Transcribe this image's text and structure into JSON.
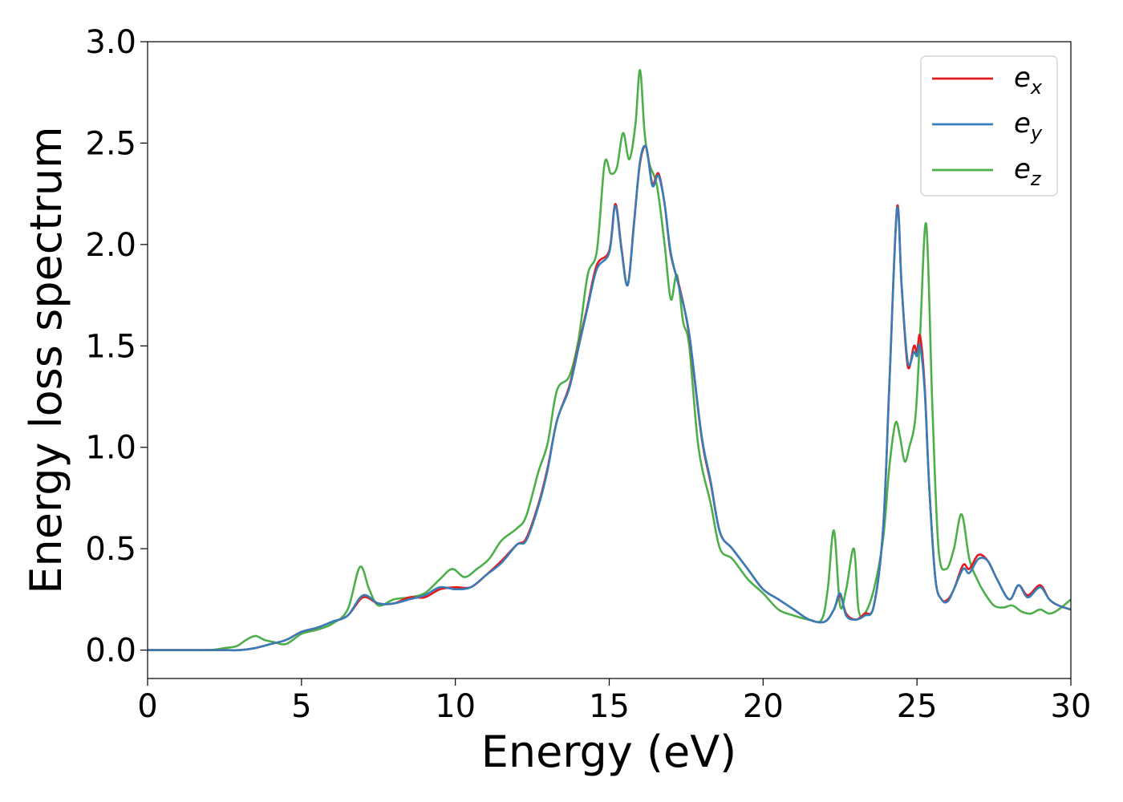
{
  "chart_data": {
    "type": "line",
    "title": "",
    "xlabel": "Energy (eV)",
    "ylabel": "Energy loss spectrum",
    "xlim": [
      0,
      30
    ],
    "ylim": [
      -0.14,
      3.0
    ],
    "xticks": [
      0,
      5,
      10,
      15,
      20,
      25,
      30
    ],
    "xtick_labels": [
      "0",
      "5",
      "10",
      "15",
      "20",
      "25",
      "30"
    ],
    "yticks": [
      0.0,
      0.5,
      1.0,
      1.5,
      2.0,
      2.5,
      3.0
    ],
    "ytick_labels": [
      "0.0",
      "0.5",
      "1.0",
      "1.5",
      "2.0",
      "2.5",
      "3.0"
    ],
    "grid": false,
    "legend_position": "top-right",
    "series": [
      {
        "name": "e_x",
        "legend_base": "e",
        "legend_sub": "x",
        "color": "#e41a1c",
        "x": [
          0,
          1,
          2,
          2.5,
          3,
          3.5,
          4,
          4.5,
          5,
          5.5,
          6,
          6.5,
          7,
          7.5,
          8,
          8.5,
          9,
          9.5,
          10,
          10.5,
          11,
          11.5,
          12,
          12.3,
          12.7,
          13,
          13.3,
          13.7,
          14,
          14.3,
          14.6,
          15,
          15.2,
          15.4,
          15.6,
          15.8,
          16,
          16.2,
          16.4,
          16.6,
          16.8,
          17,
          17.3,
          17.6,
          18,
          18.3,
          18.6,
          19,
          19.5,
          20,
          20.5,
          21,
          21.5,
          22,
          22.3,
          22.5,
          22.7,
          23,
          23.3,
          23.6,
          23.9,
          24.1,
          24.35,
          24.5,
          24.7,
          24.9,
          25,
          25.1,
          25.25,
          25.4,
          25.6,
          25.8,
          26,
          26.2,
          26.5,
          26.7,
          27,
          27.3,
          27.6,
          28,
          28.3,
          28.6,
          29,
          29.3,
          29.6,
          30
        ],
        "y": [
          0,
          0,
          0,
          0,
          0,
          0.01,
          0.03,
          0.05,
          0.09,
          0.11,
          0.14,
          0.17,
          0.26,
          0.23,
          0.23,
          0.26,
          0.26,
          0.3,
          0.31,
          0.31,
          0.37,
          0.44,
          0.52,
          0.55,
          0.72,
          0.9,
          1.13,
          1.3,
          1.5,
          1.7,
          1.9,
          1.97,
          2.2,
          1.98,
          1.8,
          2.1,
          2.4,
          2.48,
          2.3,
          2.35,
          2.2,
          1.95,
          1.78,
          1.55,
          1.05,
          0.82,
          0.58,
          0.5,
          0.4,
          0.3,
          0.25,
          0.2,
          0.15,
          0.14,
          0.2,
          0.27,
          0.18,
          0.15,
          0.18,
          0.22,
          0.6,
          1.3,
          2.18,
          1.8,
          1.4,
          1.5,
          1.47,
          1.55,
          1.3,
          0.8,
          0.35,
          0.25,
          0.25,
          0.3,
          0.42,
          0.4,
          0.47,
          0.44,
          0.35,
          0.25,
          0.32,
          0.27,
          0.32,
          0.25,
          0.22,
          0.2
        ]
      },
      {
        "name": "e_y",
        "legend_base": "e",
        "legend_sub": "y",
        "color": "#377eb8",
        "x": [
          0,
          1,
          2,
          2.5,
          3,
          3.5,
          4,
          4.5,
          5,
          5.5,
          6,
          6.5,
          7,
          7.5,
          8,
          8.5,
          9,
          9.5,
          10,
          10.5,
          11,
          11.5,
          12,
          12.3,
          12.7,
          13,
          13.3,
          13.7,
          14,
          14.3,
          14.6,
          15,
          15.2,
          15.4,
          15.6,
          15.8,
          16,
          16.2,
          16.4,
          16.6,
          16.8,
          17,
          17.3,
          17.6,
          18,
          18.3,
          18.6,
          19,
          19.5,
          20,
          20.5,
          21,
          21.5,
          22,
          22.3,
          22.5,
          22.7,
          23,
          23.3,
          23.6,
          23.9,
          24.1,
          24.35,
          24.5,
          24.7,
          24.9,
          25,
          25.1,
          25.25,
          25.4,
          25.6,
          25.8,
          26,
          26.2,
          26.5,
          26.7,
          27,
          27.3,
          27.6,
          28,
          28.3,
          28.6,
          29,
          29.3,
          29.6,
          30
        ],
        "y": [
          0,
          0,
          0,
          0,
          0,
          0.01,
          0.03,
          0.05,
          0.09,
          0.11,
          0.14,
          0.17,
          0.27,
          0.23,
          0.23,
          0.25,
          0.27,
          0.31,
          0.3,
          0.31,
          0.37,
          0.43,
          0.52,
          0.54,
          0.71,
          0.89,
          1.13,
          1.29,
          1.49,
          1.69,
          1.88,
          1.96,
          2.19,
          1.97,
          1.8,
          2.09,
          2.41,
          2.48,
          2.29,
          2.34,
          2.2,
          1.96,
          1.77,
          1.56,
          1.06,
          0.83,
          0.58,
          0.5,
          0.4,
          0.3,
          0.25,
          0.2,
          0.15,
          0.14,
          0.2,
          0.28,
          0.17,
          0.15,
          0.17,
          0.22,
          0.6,
          1.3,
          2.17,
          1.8,
          1.42,
          1.47,
          1.45,
          1.5,
          1.28,
          0.8,
          0.35,
          0.25,
          0.24,
          0.3,
          0.4,
          0.38,
          0.45,
          0.44,
          0.35,
          0.25,
          0.32,
          0.26,
          0.31,
          0.25,
          0.22,
          0.2
        ]
      },
      {
        "name": "e_z",
        "legend_base": "e",
        "legend_sub": "z",
        "color": "#4daf4a",
        "x": [
          0,
          1,
          2,
          2.5,
          2.9,
          3.2,
          3.5,
          3.8,
          4.1,
          4.5,
          5,
          5.5,
          6,
          6.5,
          6.9,
          7.2,
          7.5,
          8,
          8.5,
          9,
          9.5,
          9.9,
          10.3,
          10.7,
          11.1,
          11.5,
          12,
          12.3,
          12.7,
          13,
          13.3,
          13.7,
          14,
          14.3,
          14.6,
          14.85,
          15.05,
          15.25,
          15.45,
          15.65,
          15.85,
          16.0,
          16.15,
          16.3,
          16.55,
          16.8,
          17.0,
          17.2,
          17.4,
          17.6,
          17.9,
          18.3,
          18.6,
          19,
          19.5,
          20,
          20.5,
          21,
          21.5,
          21.9,
          22.1,
          22.3,
          22.5,
          22.7,
          22.95,
          23.1,
          23.3,
          23.6,
          23.9,
          24.1,
          24.3,
          24.45,
          24.6,
          24.75,
          24.95,
          25.1,
          25.3,
          25.5,
          25.7,
          25.95,
          26.2,
          26.45,
          26.7,
          26.95,
          27.2,
          27.5,
          27.8,
          28.1,
          28.4,
          28.7,
          29,
          29.3,
          29.6,
          30
        ],
        "y": [
          0,
          0,
          0,
          0.01,
          0.02,
          0.05,
          0.07,
          0.05,
          0.04,
          0.03,
          0.08,
          0.1,
          0.13,
          0.2,
          0.41,
          0.3,
          0.22,
          0.25,
          0.26,
          0.28,
          0.35,
          0.4,
          0.36,
          0.4,
          0.45,
          0.54,
          0.6,
          0.66,
          0.88,
          1.02,
          1.28,
          1.35,
          1.53,
          1.85,
          1.97,
          2.4,
          2.35,
          2.38,
          2.55,
          2.42,
          2.59,
          2.86,
          2.55,
          2.4,
          2.29,
          2.0,
          1.73,
          1.85,
          1.62,
          1.5,
          1.0,
          0.72,
          0.5,
          0.45,
          0.35,
          0.28,
          0.2,
          0.17,
          0.15,
          0.15,
          0.3,
          0.59,
          0.22,
          0.3,
          0.5,
          0.2,
          0.18,
          0.3,
          0.55,
          0.9,
          1.12,
          1.05,
          0.93,
          1.0,
          1.15,
          1.55,
          2.1,
          1.2,
          0.5,
          0.4,
          0.5,
          0.67,
          0.45,
          0.35,
          0.28,
          0.22,
          0.21,
          0.22,
          0.19,
          0.18,
          0.2,
          0.18,
          0.2,
          0.25
        ]
      }
    ]
  }
}
